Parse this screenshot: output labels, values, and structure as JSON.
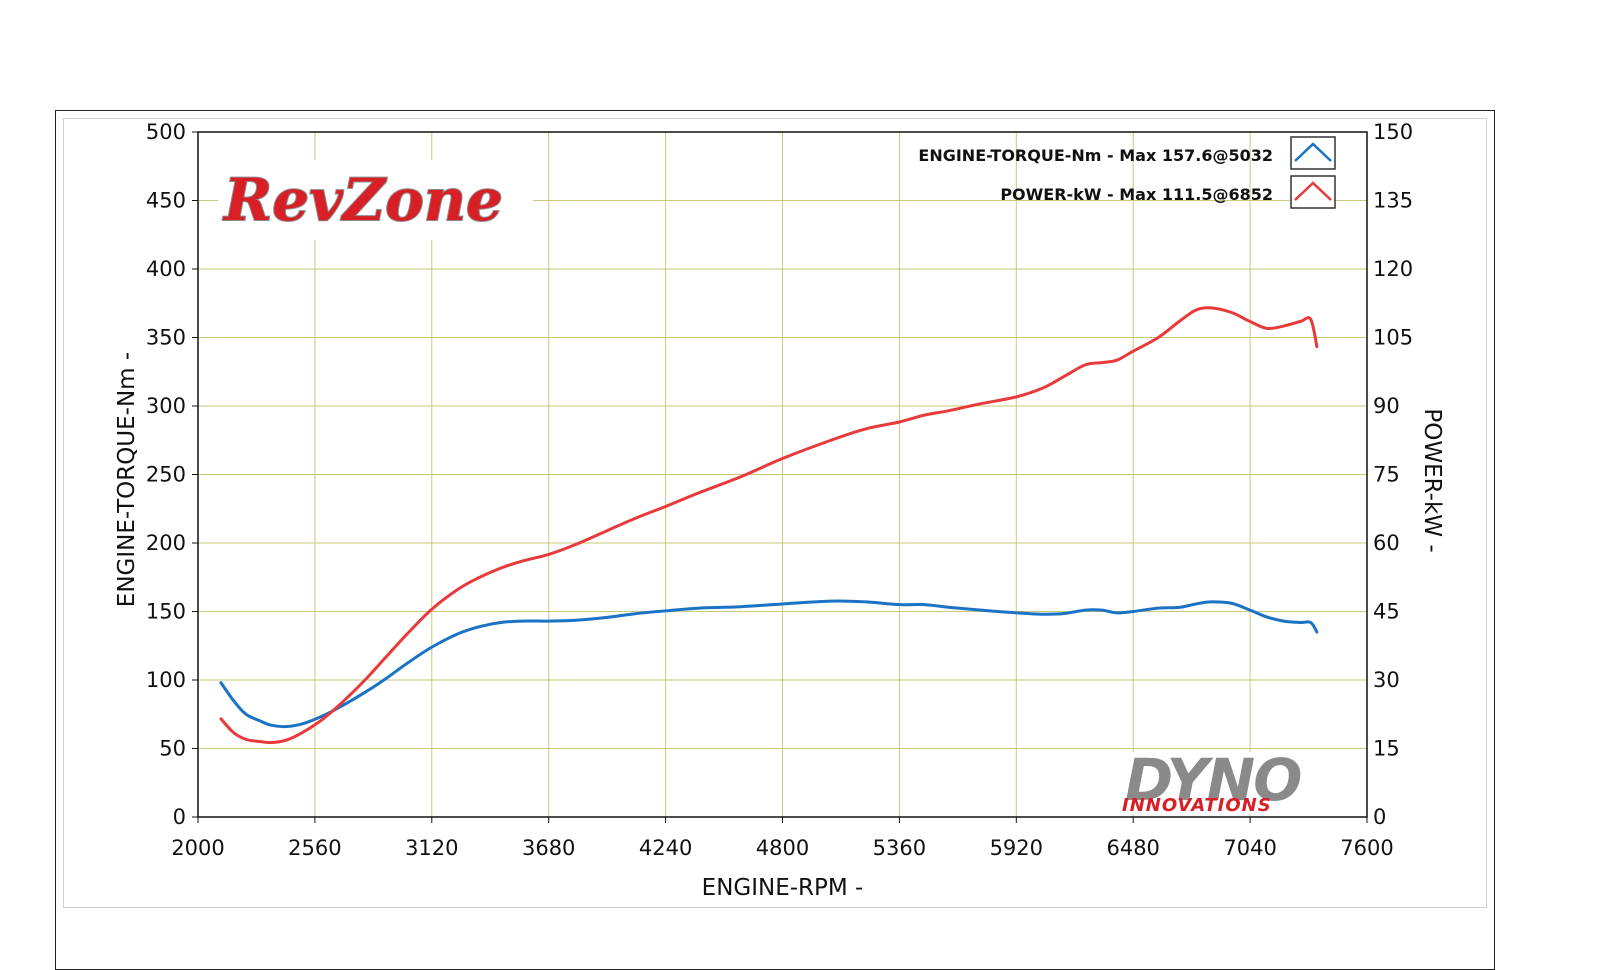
{
  "chart_data": {
    "type": "line",
    "xlabel": "ENGINE-RPM -",
    "ylabel_left": "ENGINE-TORQUE-Nm -",
    "ylabel_right": "POWER-kW -",
    "xlim": [
      2000,
      7600
    ],
    "ylim_left": [
      0,
      500
    ],
    "ylim_right": [
      0,
      150
    ],
    "x_ticks": [
      "2000",
      "2560",
      "3120",
      "3680",
      "4240",
      "4800",
      "5360",
      "5920",
      "6480",
      "7040",
      "7600"
    ],
    "y_left_ticks": [
      "0",
      "50",
      "100",
      "150",
      "200",
      "250",
      "300",
      "350",
      "400",
      "450",
      "500"
    ],
    "y_right_ticks": [
      "0",
      "15",
      "30",
      "45",
      "60",
      "75",
      "90",
      "105",
      "120",
      "135",
      "150"
    ],
    "grid": true,
    "legend_position": "top-right",
    "series": [
      {
        "name": "ENGINE-TORQUE-Nm -",
        "legend_note": "Max 157.6@5032",
        "axis": "left",
        "color": "#1a73c4",
        "x": [
          2110,
          2170,
          2230,
          2300,
          2350,
          2420,
          2500,
          2600,
          2700,
          2800,
          2900,
          3000,
          3120,
          3250,
          3350,
          3450,
          3550,
          3680,
          3800,
          3950,
          4100,
          4240,
          4400,
          4600,
          4800,
          5032,
          5200,
          5360,
          5480,
          5600,
          5750,
          5920,
          6050,
          6150,
          6250,
          6330,
          6400,
          6480,
          6600,
          6700,
          6780,
          6852,
          6950,
          7040,
          7120,
          7200,
          7280,
          7330,
          7360
        ],
        "y": [
          98,
          85,
          75,
          70,
          67,
          66,
          68,
          74,
          82,
          91,
          101,
          112,
          124,
          134,
          139,
          142,
          143,
          143,
          143.5,
          145.5,
          148.5,
          150.5,
          152.5,
          153.5,
          155.5,
          157.6,
          157,
          155,
          155,
          153,
          151,
          149,
          148,
          148.5,
          151,
          151,
          149,
          150,
          152.5,
          153,
          155.5,
          157,
          156,
          151,
          146,
          143,
          142,
          142,
          135
        ]
      },
      {
        "name": "POWER-kW -",
        "legend_note": "Max 111.5@6852",
        "axis": "right",
        "color": "#e8393b",
        "x": [
          2110,
          2170,
          2230,
          2300,
          2350,
          2420,
          2500,
          2600,
          2700,
          2800,
          2900,
          3000,
          3120,
          3250,
          3350,
          3450,
          3550,
          3680,
          3800,
          3950,
          4100,
          4240,
          4400,
          4600,
          4800,
          5032,
          5200,
          5360,
          5480,
          5600,
          5750,
          5920,
          6050,
          6150,
          6250,
          6330,
          6400,
          6480,
          6600,
          6700,
          6780,
          6852,
          6950,
          7040,
          7120,
          7200,
          7280,
          7330,
          7360
        ],
        "y": [
          21.5,
          18.5,
          17,
          16.5,
          16.3,
          16.8,
          18.5,
          21.5,
          25.5,
          30,
          35,
          40,
          45.5,
          50,
          52.5,
          54.5,
          56,
          57.5,
          59.5,
          62.5,
          65.5,
          68,
          71,
          74.5,
          78.5,
          82.5,
          85,
          86.5,
          88,
          89,
          90.5,
          92,
          94,
          96.5,
          99,
          99.5,
          100,
          102,
          105,
          108.5,
          111,
          111.5,
          110.5,
          108.5,
          107,
          107.5,
          108.5,
          109,
          103
        ]
      }
    ],
    "logos": [
      "RevZone",
      "DYNO",
      "INNOVATIONS"
    ]
  }
}
